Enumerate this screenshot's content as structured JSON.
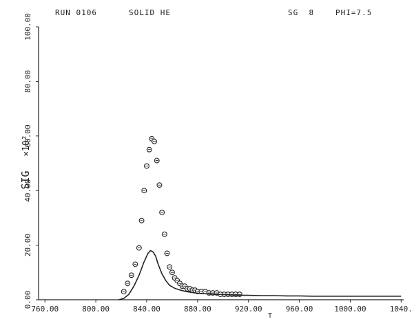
{
  "header": {
    "run": "RUN 0106",
    "material": "SOLID HE",
    "sg": "SG  8",
    "phi": "PHI=7.5"
  },
  "chart_data": {
    "type": "scatter",
    "title": "",
    "xlabel": "T",
    "ylabel": "SIG",
    "ylabel_scale": "×10²",
    "xlim": [
      755,
      1042
    ],
    "ylim": [
      0,
      100
    ],
    "x_ticks": [
      "760.00",
      "800.00",
      "840.00",
      "880.00",
      "920.00",
      "960.00",
      "1000.00",
      "1040."
    ],
    "x_tick_values": [
      760,
      800,
      840,
      880,
      920,
      960,
      1000,
      1040
    ],
    "y_ticks": [
      "0.00",
      "20.00",
      "40.00",
      "60.00",
      "80.00",
      "100.00"
    ],
    "y_tick_values": [
      0,
      20,
      40,
      60,
      80,
      100
    ],
    "grid": false,
    "legend": "none",
    "colors": {
      "ink": "#222222",
      "background": "#ffffff"
    },
    "series": [
      {
        "kind": "points",
        "x": [
          822,
          825,
          828,
          831,
          834,
          836,
          838,
          840,
          842,
          844,
          846,
          848,
          850,
          852,
          854,
          856,
          858,
          860,
          862,
          864,
          866,
          868,
          870,
          872,
          874,
          876,
          878,
          880,
          883,
          886,
          889,
          892,
          895,
          898,
          901,
          904,
          907,
          910,
          913
        ],
        "y": [
          3,
          6,
          9,
          13,
          19,
          29,
          40,
          49,
          55,
          59,
          58,
          51,
          42,
          32,
          24,
          17,
          12,
          10,
          8,
          7,
          6,
          5,
          5,
          4,
          4,
          3.5,
          3.5,
          3,
          3,
          3,
          2.5,
          2.5,
          2.5,
          2,
          2,
          2,
          2,
          2,
          2
        ]
      },
      {
        "kind": "line",
        "x": [
          818,
          822,
          826,
          830,
          834,
          838,
          841,
          843,
          845,
          847,
          849,
          852,
          855,
          858,
          862,
          866,
          870,
          875,
          880,
          890,
          900,
          910,
          920,
          930,
          940,
          950,
          960,
          970,
          980,
          990,
          1000,
          1010,
          1020,
          1030,
          1040
        ],
        "y": [
          0,
          0.5,
          2,
          5,
          9,
          14,
          17,
          18,
          17.5,
          16,
          13,
          9.5,
          7,
          5.3,
          4.2,
          3.6,
          3.1,
          2.7,
          2.4,
          2.1,
          1.9,
          1.7,
          1.6,
          1.5,
          1.5,
          1.4,
          1.4,
          1.3,
          1.3,
          1.3,
          1.3,
          1.3,
          1.3,
          1.3,
          1.3
        ]
      }
    ]
  }
}
